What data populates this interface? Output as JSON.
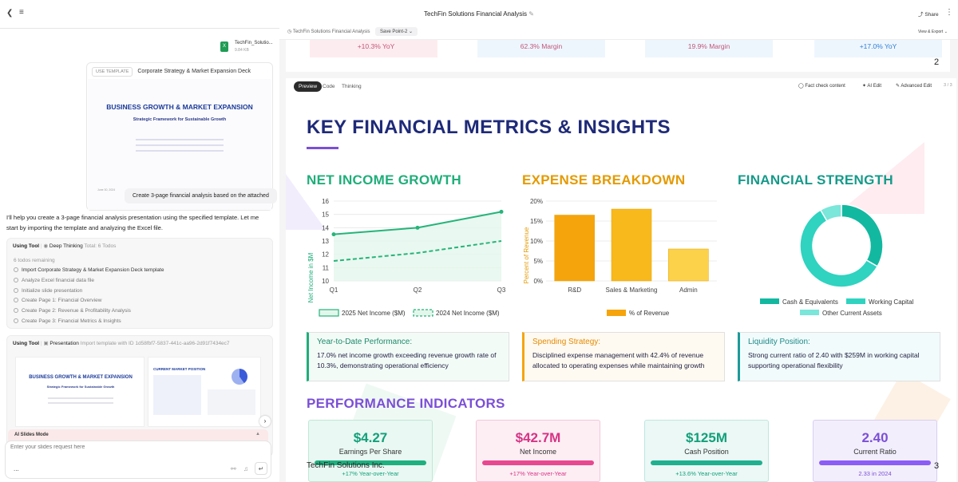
{
  "app": {
    "title": "TechFin Solutions Financial Analysis",
    "share": "Share"
  },
  "chat": {
    "file": {
      "name": "TechFin_Solutio...",
      "size": "9.84 KB"
    },
    "template": {
      "tag": "USE TEMPLATE",
      "name": "Corporate Strategy & Market Expansion Deck",
      "slide_title": "BUSINESS GROWTH & MARKET EXPANSION",
      "slide_subtitle": "Strategic Framework for Sustainable Growth",
      "date": "June 30, 2024",
      "footer": "TechFin Solutions Inc."
    },
    "user_message": "Create 3-page financial analysis based on the attached",
    "assistant_message": "I'll help you create a 3-page financial analysis presentation using the specified template. Let me start by importing the template and analyzing the Excel file.",
    "tool1": {
      "label": "Using Tool",
      "name": "Deep Thinking",
      "meta": "Total: 6 Todos",
      "remaining": "6 todos remaining",
      "todos": [
        "Import Corporate Strategy & Market Expansion Deck template",
        "Analyze Excel financial data file",
        "Initialize slide presentation",
        "Create Page 1: Financial Overview",
        "Create Page 2: Revenue & Profitability Analysis",
        "Create Page 3: Financial Metrics & Insights"
      ]
    },
    "tool2": {
      "label": "Using Tool",
      "name": "Presentation",
      "meta": "Import template with ID 1d58fbf7-5837-441c-aa96-2d91f7434ec7",
      "thumb1_title": "BUSINESS GROWTH & MARKET EXPANSION",
      "thumb1_subtitle": "Strategic Framework for Sustainable Growth",
      "thumb2_title": "CURRENT MARKET POSITION"
    },
    "mode": "AI Slides Mode",
    "input_placeholder": "Enter your slides request here",
    "more": "..."
  },
  "preview": {
    "breadcrumb": "TechFin Solutions Financial Analysis",
    "savepoint": "Save Point-2",
    "view_export": "View & Export",
    "prev_slide": {
      "values": [
        "+10.3% YoY",
        "62.3% Margin",
        "19.9% Margin",
        "+17.0% YoY"
      ],
      "page": "2"
    },
    "tabs": [
      "Preview",
      "Code",
      "Thinking"
    ],
    "actions": {
      "fact_check": "Fact check content",
      "ai_edit": "AI Edit",
      "advanced_edit": "Advanced Edit",
      "page_count": "3 / 3"
    },
    "slide": {
      "title": "KEY FINANCIAL METRICS & INSIGHTS",
      "sections": {
        "net_income": "NET INCOME GROWTH",
        "expense": "EXPENSE BREAKDOWN",
        "strength": "FINANCIAL STRENGTH"
      },
      "insights": [
        {
          "heading": "Year-to-Date Performance:",
          "text": "17.0% net income growth exceeding revenue growth rate of 10.3%, demonstrating operational efficiency",
          "color": "#1d8a6a"
        },
        {
          "heading": "Spending Strategy:",
          "text": "Disciplined expense management with 42.4% of revenue allocated to operating expenses while maintaining growth",
          "color": "#e38a00"
        },
        {
          "heading": "Liquidity Position:",
          "text": "Strong current ratio of 2.40 with $259M in working capital supporting operational flexibility",
          "color": "#1d8a8a"
        }
      ],
      "perf_heading": "PERFORMANCE INDICATORS",
      "indicators": [
        {
          "value": "$4.27",
          "label": "Earnings Per Share",
          "sub": "+17% Year-over-Year",
          "color": "#12a07a",
          "bg": "#e9f8f2",
          "bar": "#1fb07f"
        },
        {
          "value": "$42.7M",
          "label": "Net Income",
          "sub": "+17% Year-over-Year",
          "color": "#d63384",
          "bg": "#fdeef4",
          "bar": "#e8488f"
        },
        {
          "value": "$125M",
          "label": "Cash Position",
          "sub": "+13.6% Year-over-Year",
          "color": "#12a07a",
          "bg": "#ebf8f5",
          "bar": "#20b08f"
        },
        {
          "value": "2.40",
          "label": "Current Ratio",
          "sub": "2.33 in 2024",
          "color": "#7b4fd6",
          "bg": "#f2eefc",
          "bar": "#8b5cf6"
        }
      ],
      "company": "TechFin Solutions Inc.",
      "page": "3"
    }
  },
  "chart_data": [
    {
      "type": "line",
      "x": [
        "Q1",
        "Q2",
        "Q3"
      ],
      "ylabel": "Net Income in $M",
      "ylim": [
        10,
        16
      ],
      "yticks": [
        "10",
        "11",
        "12",
        "13",
        "14",
        "15",
        "16"
      ],
      "series": [
        {
          "name": "2025 Net Income ($M)",
          "values": [
            13.5,
            14.0,
            15.2
          ],
          "color": "#26b47a",
          "style": "solid"
        },
        {
          "name": "2024 Net Income ($M)",
          "values": [
            11.5,
            12.1,
            13.0
          ],
          "color": "#26b47a",
          "style": "dashed"
        }
      ]
    },
    {
      "type": "bar",
      "categories": [
        "R&D",
        "Sales & Marketing",
        "Admin"
      ],
      "ylabel": "Percent of Revenue",
      "ylim": [
        0,
        20
      ],
      "yticks": [
        "0%",
        "5%",
        "10%",
        "15%",
        "20%"
      ],
      "series": [
        {
          "name": "% of Revenue",
          "values": [
            16.5,
            18.0,
            8.0
          ]
        }
      ],
      "colors": [
        "#f5a40c",
        "#f8b91c",
        "#fbd24a"
      ]
    },
    {
      "type": "pie",
      "donut": true,
      "labels": [
        "Cash & Equivalents",
        "Working Capital",
        "Other Current Assets"
      ],
      "values": [
        33.3,
        58.3,
        8.4
      ],
      "colors": [
        "#13b8a0",
        "#2fd3c0",
        "#7be6da"
      ]
    }
  ]
}
